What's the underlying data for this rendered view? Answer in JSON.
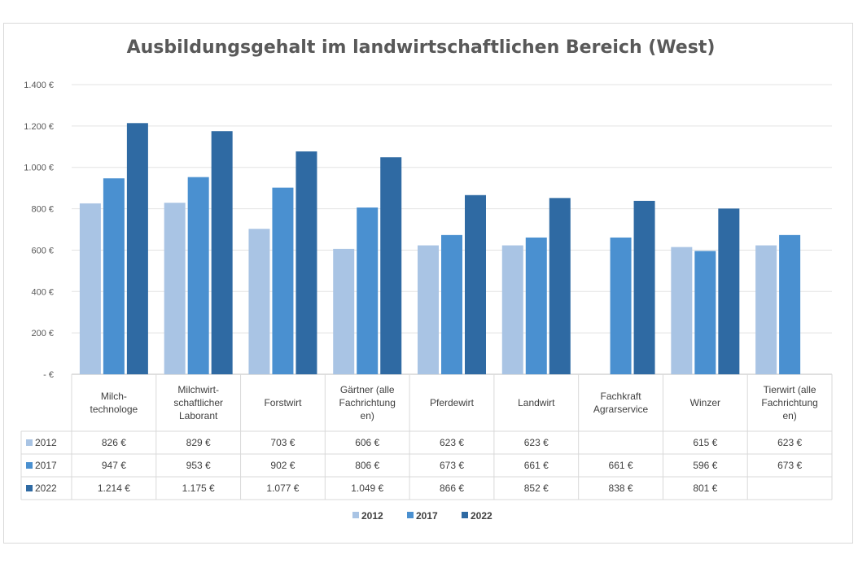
{
  "chart_data": {
    "type": "bar",
    "title": "Ausbildungsgehalt im landwirtschaftlichen Bereich (West)",
    "xlabel": "",
    "ylabel": "",
    "ylim": [
      0,
      1400
    ],
    "y_ticks": [
      "-  €",
      "200 €",
      "400 €",
      "600 €",
      "800 €",
      "1.000 €",
      "1.200 €",
      "1.400 €"
    ],
    "grid": true,
    "legend_position": "bottom",
    "categories": [
      [
        "Milch-",
        "technologe"
      ],
      [
        "Milchwirt-",
        "schaftlicher",
        "Laborant"
      ],
      [
        "Forstwirt"
      ],
      [
        "Gärtner (alle",
        "Fachrichtung",
        "en)"
      ],
      [
        "Pferdewirt"
      ],
      [
        "Landwirt"
      ],
      [
        "Fachkraft",
        "Agrarservice"
      ],
      [
        "Winzer"
      ],
      [
        "Tierwirt (alle",
        "Fachrichtung",
        "en)"
      ]
    ],
    "series": [
      {
        "name": "2012",
        "color": "#a9c4e4",
        "values": [
          826,
          829,
          703,
          606,
          623,
          623,
          null,
          615,
          623
        ],
        "labels": [
          "826 €",
          "829 €",
          "703 €",
          "606 €",
          "623 €",
          "623 €",
          "",
          "615 €",
          "623 €"
        ]
      },
      {
        "name": "2017",
        "color": "#4a90d0",
        "values": [
          947,
          953,
          902,
          806,
          673,
          661,
          661,
          596,
          673
        ],
        "labels": [
          "947 €",
          "953 €",
          "902 €",
          "806 €",
          "673 €",
          "661 €",
          "661 €",
          "596 €",
          "673 €"
        ]
      },
      {
        "name": "2022",
        "color": "#2f6aa3",
        "values": [
          1214,
          1175,
          1077,
          1049,
          866,
          852,
          838,
          801,
          null
        ],
        "labels": [
          "1.214 €",
          "1.175 €",
          "1.077 €",
          "1.049 €",
          "866 €",
          "852 €",
          "838 €",
          "801 €",
          ""
        ]
      }
    ]
  }
}
